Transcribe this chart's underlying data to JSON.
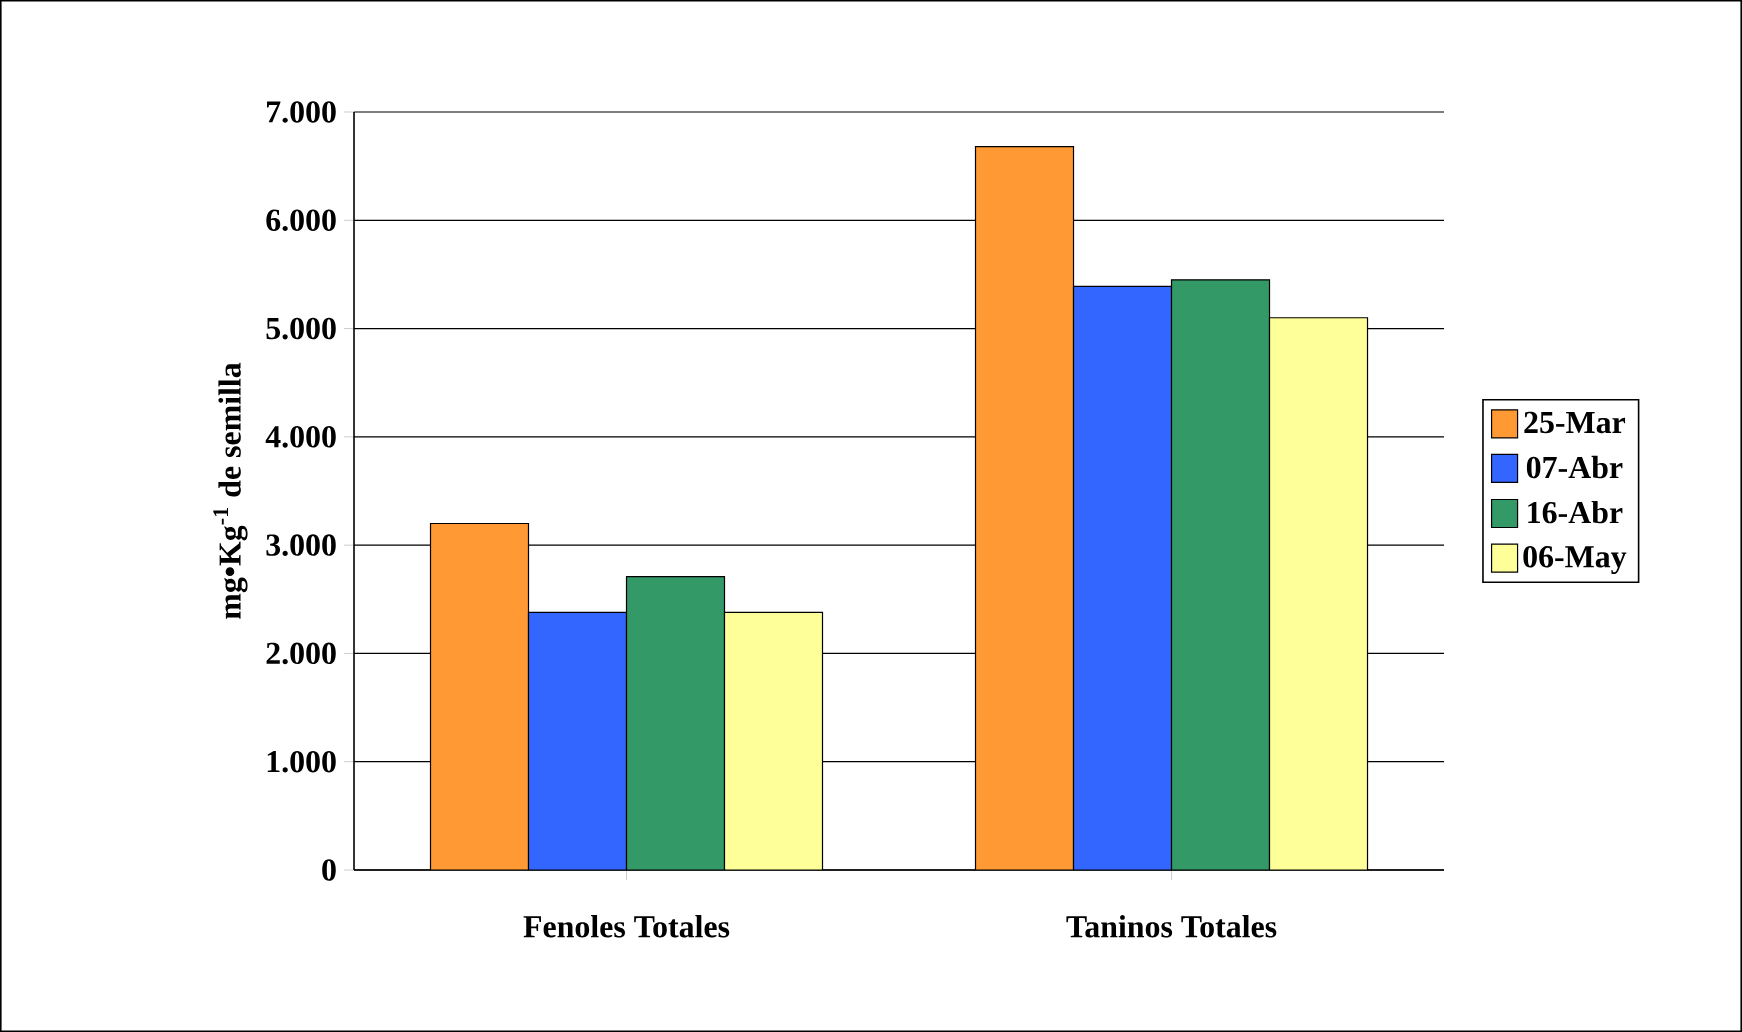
{
  "chart_data": {
    "type": "bar",
    "ylabel": "mg•Kg$^{-1}$ de semilla",
    "categories": [
      "Fenoles Totales",
      "Taninos Totales"
    ],
    "series": [
      {
        "name": "25-Mar",
        "color": "#ff9933",
        "values": [
          3200,
          6680
        ]
      },
      {
        "name": "07-Abr",
        "color": "#3366ff",
        "values": [
          2380,
          5390
        ]
      },
      {
        "name": "16-Abr",
        "color": "#339966",
        "values": [
          2710,
          5450
        ]
      },
      {
        "name": "06-May",
        "color": "#ffff99",
        "values": [
          2380,
          5100
        ]
      }
    ],
    "ylim": [
      0,
      7000
    ],
    "yticks": [
      {
        "value": 0,
        "label": "0"
      },
      {
        "value": 1000,
        "label": "1.000"
      },
      {
        "value": 2000,
        "label": "2.000"
      },
      {
        "value": 3000,
        "label": "3.000"
      },
      {
        "value": 4000,
        "label": "4.000"
      },
      {
        "value": 5000,
        "label": "5.000"
      },
      {
        "value": 6000,
        "label": "6.000"
      },
      {
        "value": 7000,
        "label": "7.000"
      }
    ],
    "grid": "y",
    "legend": "right"
  }
}
